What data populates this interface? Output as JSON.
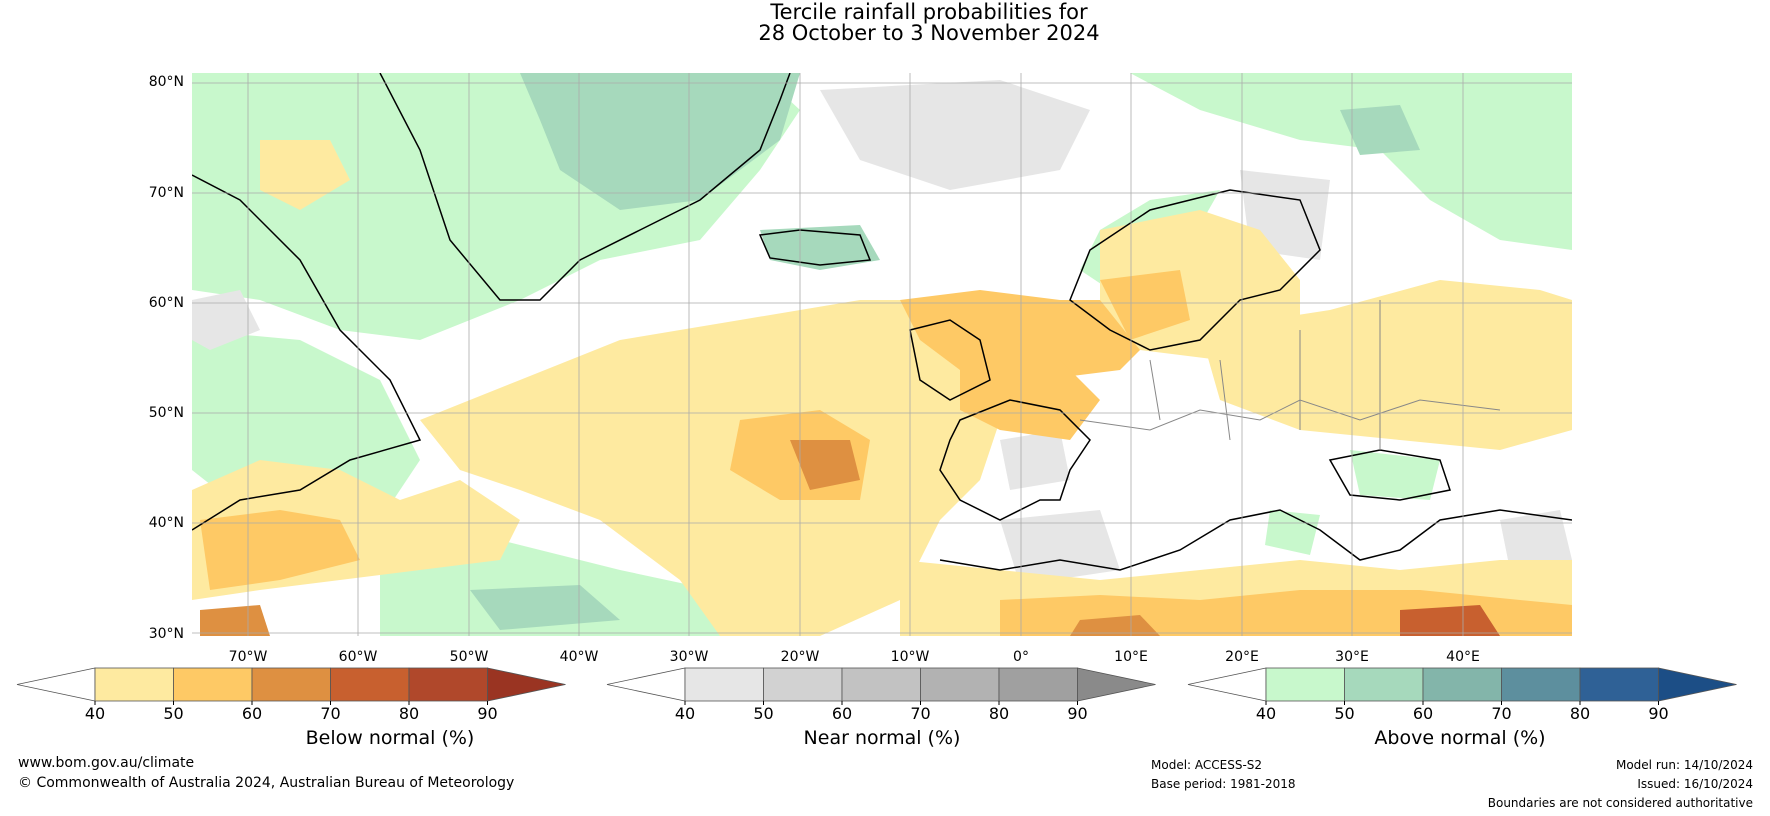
{
  "title": {
    "line1": "Tercile rainfall probabilities for",
    "line2": "28 October to 3 November 2024"
  },
  "map": {
    "lat_labels": [
      "80°N",
      "70°N",
      "60°N",
      "50°N",
      "40°N",
      "30°N"
    ],
    "lon_labels": [
      "70°W",
      "60°W",
      "50°W",
      "40°W",
      "30°W",
      "20°W",
      "10°W",
      "0°",
      "10°E",
      "20°E",
      "30°E",
      "40°E"
    ]
  },
  "legends": {
    "below": {
      "label": "Below normal (%)",
      "ticks": [
        "40",
        "50",
        "60",
        "70",
        "80",
        "90"
      ],
      "colors": [
        "#ffffff",
        "#feeaa0",
        "#fec965",
        "#de9041",
        "#c8602f",
        "#b0482b",
        "#9a3422"
      ]
    },
    "near": {
      "label": "Near normal (%)",
      "ticks": [
        "40",
        "50",
        "60",
        "70",
        "80",
        "90"
      ],
      "colors": [
        "#ffffff",
        "#e6e6e6",
        "#d2d2d2",
        "#c2c2c2",
        "#b2b2b2",
        "#a0a0a0",
        "#8a8a8a"
      ]
    },
    "above": {
      "label": "Above normal (%)",
      "ticks": [
        "40",
        "50",
        "60",
        "70",
        "80",
        "90"
      ],
      "colors": [
        "#ffffff",
        "#c8f8cc",
        "#a6d9bc",
        "#83b5aa",
        "#5d8f9e",
        "#2f6196",
        "#1c4e86"
      ]
    }
  },
  "footer": {
    "website": "www.bom.gov.au/climate",
    "copyright": "© Commonwealth of Australia 2024, Australian Bureau of Meteorology",
    "model": "Model: ACCESS-S2",
    "base_period": "Base period: 1981-2018",
    "model_run": "Model run: 14/10/2024",
    "issued": "Issued: 16/10/2024",
    "disclaimer": "Boundaries are not considered authoritative"
  }
}
